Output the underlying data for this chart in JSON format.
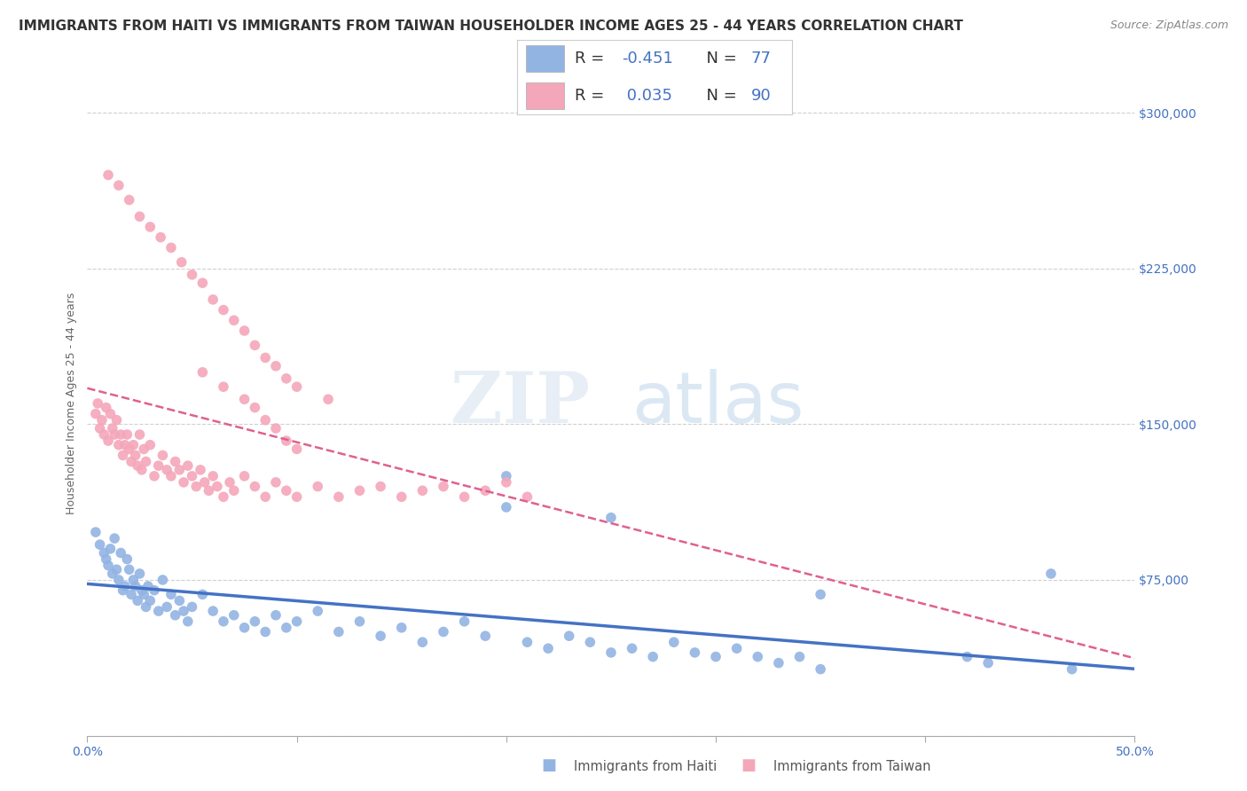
{
  "title": "IMMIGRANTS FROM HAITI VS IMMIGRANTS FROM TAIWAN HOUSEHOLDER INCOME AGES 25 - 44 YEARS CORRELATION CHART",
  "source": "Source: ZipAtlas.com",
  "ylabel": "Householder Income Ages 25 - 44 years",
  "xlim": [
    0.0,
    0.5
  ],
  "ylim": [
    0,
    320000
  ],
  "yticks": [
    0,
    75000,
    150000,
    225000,
    300000
  ],
  "ytick_labels_right": [
    "",
    "$75,000",
    "$150,000",
    "$225,000",
    "$300,000"
  ],
  "xticks": [
    0.0,
    0.1,
    0.2,
    0.3,
    0.4,
    0.5
  ],
  "xtick_labels": [
    "0.0%",
    "",
    "",
    "",
    "",
    "50.0%"
  ],
  "haiti_color": "#92b4e3",
  "taiwan_color": "#f4a7b9",
  "haiti_R": -0.451,
  "haiti_N": 77,
  "taiwan_R": 0.035,
  "taiwan_N": 90,
  "haiti_line_color": "#4472c4",
  "taiwan_line_color": "#e06090",
  "background_color": "#ffffff",
  "grid_color": "#d0d0d0",
  "axis_color": "#4472c4",
  "title_fontsize": 11,
  "axis_label_fontsize": 9,
  "tick_fontsize": 10,
  "legend_fontsize": 13,
  "haiti_x": [
    0.004,
    0.006,
    0.008,
    0.009,
    0.01,
    0.011,
    0.012,
    0.013,
    0.014,
    0.015,
    0.016,
    0.017,
    0.018,
    0.019,
    0.02,
    0.021,
    0.022,
    0.023,
    0.024,
    0.025,
    0.026,
    0.027,
    0.028,
    0.029,
    0.03,
    0.032,
    0.034,
    0.036,
    0.038,
    0.04,
    0.042,
    0.044,
    0.046,
    0.048,
    0.05,
    0.055,
    0.06,
    0.065,
    0.07,
    0.075,
    0.08,
    0.085,
    0.09,
    0.095,
    0.1,
    0.11,
    0.12,
    0.13,
    0.14,
    0.15,
    0.16,
    0.17,
    0.18,
    0.19,
    0.2,
    0.21,
    0.22,
    0.23,
    0.24,
    0.25,
    0.26,
    0.27,
    0.28,
    0.29,
    0.3,
    0.31,
    0.32,
    0.33,
    0.34,
    0.35,
    0.2,
    0.25,
    0.35,
    0.42,
    0.43,
    0.46,
    0.47
  ],
  "haiti_y": [
    98000,
    92000,
    88000,
    85000,
    82000,
    90000,
    78000,
    95000,
    80000,
    75000,
    88000,
    70000,
    72000,
    85000,
    80000,
    68000,
    75000,
    72000,
    65000,
    78000,
    70000,
    68000,
    62000,
    72000,
    65000,
    70000,
    60000,
    75000,
    62000,
    68000,
    58000,
    65000,
    60000,
    55000,
    62000,
    68000,
    60000,
    55000,
    58000,
    52000,
    55000,
    50000,
    58000,
    52000,
    55000,
    60000,
    50000,
    55000,
    48000,
    52000,
    45000,
    50000,
    55000,
    48000,
    125000,
    45000,
    42000,
    48000,
    45000,
    40000,
    42000,
    38000,
    45000,
    40000,
    38000,
    42000,
    38000,
    35000,
    38000,
    32000,
    110000,
    105000,
    68000,
    38000,
    35000,
    78000,
    32000
  ],
  "taiwan_x": [
    0.004,
    0.005,
    0.006,
    0.007,
    0.008,
    0.009,
    0.01,
    0.011,
    0.012,
    0.013,
    0.014,
    0.015,
    0.016,
    0.017,
    0.018,
    0.019,
    0.02,
    0.021,
    0.022,
    0.023,
    0.024,
    0.025,
    0.026,
    0.027,
    0.028,
    0.03,
    0.032,
    0.034,
    0.036,
    0.038,
    0.04,
    0.042,
    0.044,
    0.046,
    0.048,
    0.05,
    0.052,
    0.054,
    0.056,
    0.058,
    0.06,
    0.062,
    0.065,
    0.068,
    0.07,
    0.075,
    0.08,
    0.085,
    0.09,
    0.095,
    0.1,
    0.11,
    0.12,
    0.13,
    0.14,
    0.15,
    0.16,
    0.17,
    0.18,
    0.19,
    0.2,
    0.21,
    0.01,
    0.015,
    0.02,
    0.025,
    0.03,
    0.035,
    0.04,
    0.045,
    0.05,
    0.055,
    0.06,
    0.065,
    0.07,
    0.075,
    0.08,
    0.085,
    0.09,
    0.095,
    0.1,
    0.115,
    0.055,
    0.065,
    0.075,
    0.08,
    0.085,
    0.09,
    0.095,
    0.1
  ],
  "taiwan_y": [
    155000,
    160000,
    148000,
    152000,
    145000,
    158000,
    142000,
    155000,
    148000,
    145000,
    152000,
    140000,
    145000,
    135000,
    140000,
    145000,
    138000,
    132000,
    140000,
    135000,
    130000,
    145000,
    128000,
    138000,
    132000,
    140000,
    125000,
    130000,
    135000,
    128000,
    125000,
    132000,
    128000,
    122000,
    130000,
    125000,
    120000,
    128000,
    122000,
    118000,
    125000,
    120000,
    115000,
    122000,
    118000,
    125000,
    120000,
    115000,
    122000,
    118000,
    115000,
    120000,
    115000,
    118000,
    120000,
    115000,
    118000,
    120000,
    115000,
    118000,
    122000,
    115000,
    270000,
    265000,
    258000,
    250000,
    245000,
    240000,
    235000,
    228000,
    222000,
    218000,
    210000,
    205000,
    200000,
    195000,
    188000,
    182000,
    178000,
    172000,
    168000,
    162000,
    175000,
    168000,
    162000,
    158000,
    152000,
    148000,
    142000,
    138000
  ]
}
